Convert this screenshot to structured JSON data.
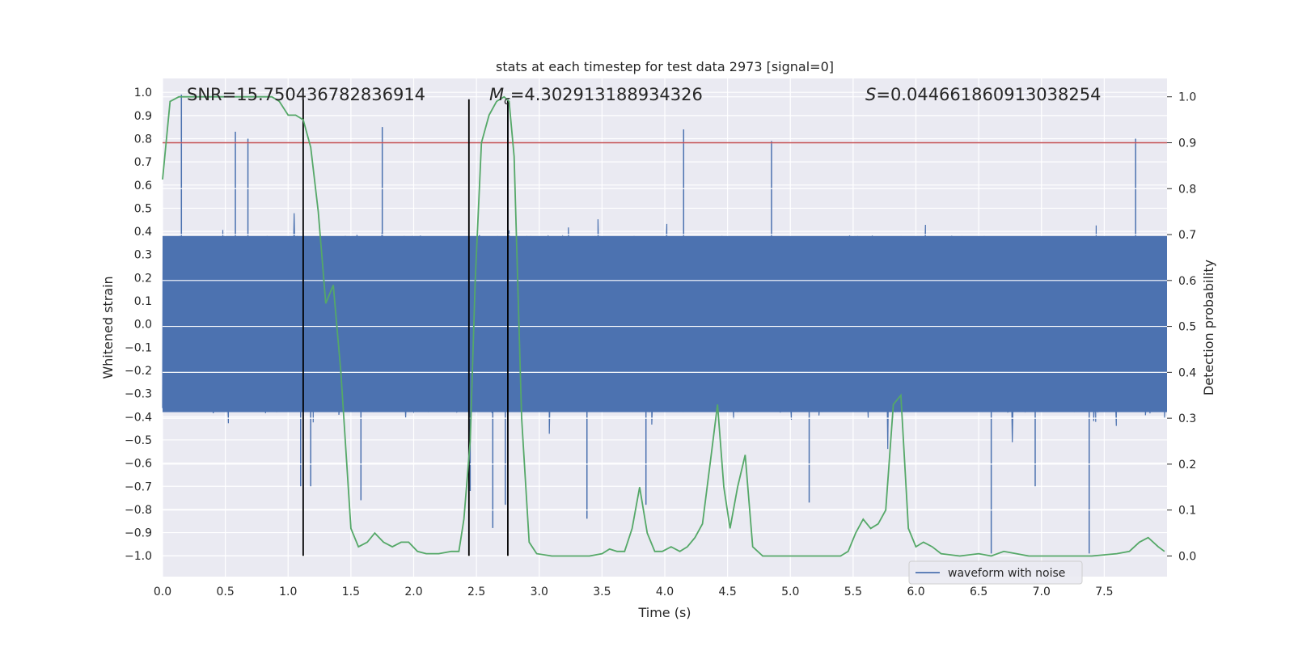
{
  "chart_data": {
    "type": "line",
    "title": "stats at each timestep for test data 2973 [signal=0]",
    "xlabel": "Time (s)",
    "ylabel_left": "Whitened strain",
    "ylabel_right": "Detection probability",
    "xlim": [
      0.0,
      8.0
    ],
    "ylim_left": [
      -1.09,
      1.06
    ],
    "ylim_right": [
      -0.045,
      1.04
    ],
    "x_ticks": [
      0.0,
      0.5,
      1.0,
      1.5,
      2.0,
      2.5,
      3.0,
      3.5,
      4.0,
      4.5,
      5.0,
      5.5,
      6.0,
      6.5,
      7.0,
      7.5
    ],
    "x_tick_labels": [
      "0.0",
      "0.5",
      "1.0",
      "1.5",
      "2.0",
      "2.5",
      "3.0",
      "3.5",
      "4.0",
      "4.5",
      "5.0",
      "5.5",
      "6.0",
      "6.5",
      "7.0",
      "7.5"
    ],
    "y_left_ticks": [
      1.0,
      0.9,
      0.8,
      0.7,
      0.6,
      0.5,
      0.4,
      0.3,
      0.2,
      0.1,
      0.0,
      -0.1,
      -0.2,
      -0.3,
      -0.4,
      -0.5,
      -0.6,
      -0.7,
      -0.8,
      -0.9,
      -1.0
    ],
    "y_left_tick_labels": [
      "1.0",
      "0.9",
      "0.8",
      "0.7",
      "0.6",
      "0.5",
      "0.4",
      "0.3",
      "0.2",
      "0.1",
      "0.0",
      "-0.1",
      "-0.2",
      "-0.3",
      "-0.4",
      "-0.5",
      "-0.6",
      "-0.7",
      "-0.8",
      "-0.9",
      "-1.0"
    ],
    "y_right_ticks": [
      1.0,
      0.9,
      0.8,
      0.7,
      0.6,
      0.5,
      0.4,
      0.3,
      0.2,
      0.1,
      0.0
    ],
    "y_right_tick_labels": [
      "1.0",
      "0.9",
      "0.8",
      "0.7",
      "0.6",
      "0.5",
      "0.4",
      "0.3",
      "0.2",
      "0.1",
      "0.0"
    ],
    "grid": true,
    "legend": {
      "placement": "lower-right",
      "entries": [
        "waveform with noise"
      ]
    },
    "annotations": {
      "snr": "SNR=15.750436782836914",
      "mc_symbol": "M",
      "mc_sub": "c",
      "mc_value": "=4.302913188934326",
      "s_symbol": "S",
      "s_value": "=0.044661860913038254"
    },
    "strain_series": {
      "name": "waveform with noise",
      "color": "#4c72b0",
      "sample_step_s": 0.004,
      "core_amplitude": 0.38,
      "typical_peak": 0.5,
      "notable_spikes": [
        [
          0.15,
          0.99
        ],
        [
          0.58,
          0.83
        ],
        [
          0.68,
          0.8
        ],
        [
          1.1,
          -0.7
        ],
        [
          1.18,
          -0.7
        ],
        [
          1.75,
          0.85
        ],
        [
          1.58,
          -0.76
        ],
        [
          2.45,
          -0.72
        ],
        [
          2.63,
          -0.88
        ],
        [
          2.73,
          -0.78
        ],
        [
          2.75,
          0.97
        ],
        [
          3.38,
          -0.84
        ],
        [
          4.15,
          0.84
        ],
        [
          4.85,
          0.79
        ],
        [
          5.15,
          -0.77
        ],
        [
          6.6,
          -0.99
        ],
        [
          7.38,
          -0.99
        ],
        [
          7.75,
          0.8
        ],
        [
          6.95,
          -0.7
        ],
        [
          3.85,
          -0.78
        ]
      ]
    },
    "threshold": {
      "value": 0.9,
      "axis": "right",
      "color": "#c44e52"
    },
    "markers": {
      "times": [
        1.12,
        2.44,
        2.75
      ],
      "color": "#000000",
      "y_range_left": [
        -1.0,
        0.97
      ]
    },
    "probability_series": {
      "color": "#55a868",
      "points": [
        [
          0.0,
          0.82
        ],
        [
          0.06,
          0.99
        ],
        [
          0.13,
          1.0
        ],
        [
          0.2,
          1.0
        ],
        [
          0.3,
          1.0
        ],
        [
          0.4,
          1.0
        ],
        [
          0.5,
          1.0
        ],
        [
          0.6,
          1.0
        ],
        [
          0.7,
          1.0
        ],
        [
          0.8,
          1.0
        ],
        [
          0.87,
          1.0
        ],
        [
          0.93,
          0.99
        ],
        [
          1.0,
          0.96
        ],
        [
          1.06,
          0.96
        ],
        [
          1.12,
          0.95
        ],
        [
          1.18,
          0.89
        ],
        [
          1.24,
          0.75
        ],
        [
          1.3,
          0.55
        ],
        [
          1.36,
          0.59
        ],
        [
          1.42,
          0.4
        ],
        [
          1.5,
          0.06
        ],
        [
          1.56,
          0.02
        ],
        [
          1.63,
          0.03
        ],
        [
          1.69,
          0.05
        ],
        [
          1.76,
          0.03
        ],
        [
          1.83,
          0.02
        ],
        [
          1.9,
          0.03
        ],
        [
          1.96,
          0.03
        ],
        [
          2.03,
          0.01
        ],
        [
          2.1,
          0.005
        ],
        [
          2.2,
          0.005
        ],
        [
          2.3,
          0.01
        ],
        [
          2.36,
          0.01
        ],
        [
          2.4,
          0.08
        ],
        [
          2.45,
          0.25
        ],
        [
          2.49,
          0.6
        ],
        [
          2.54,
          0.9
        ],
        [
          2.6,
          0.96
        ],
        [
          2.66,
          0.99
        ],
        [
          2.72,
          1.0
        ],
        [
          2.76,
          0.99
        ],
        [
          2.8,
          0.87
        ],
        [
          2.86,
          0.3
        ],
        [
          2.92,
          0.03
        ],
        [
          2.98,
          0.005
        ],
        [
          3.1,
          0.0
        ],
        [
          3.2,
          0.0
        ],
        [
          3.3,
          0.0
        ],
        [
          3.4,
          0.0
        ],
        [
          3.5,
          0.005
        ],
        [
          3.56,
          0.015
        ],
        [
          3.62,
          0.01
        ],
        [
          3.68,
          0.01
        ],
        [
          3.74,
          0.06
        ],
        [
          3.8,
          0.15
        ],
        [
          3.86,
          0.05
        ],
        [
          3.92,
          0.01
        ],
        [
          3.98,
          0.01
        ],
        [
          4.05,
          0.02
        ],
        [
          4.12,
          0.01
        ],
        [
          4.18,
          0.02
        ],
        [
          4.24,
          0.04
        ],
        [
          4.3,
          0.07
        ],
        [
          4.37,
          0.22
        ],
        [
          4.42,
          0.33
        ],
        [
          4.47,
          0.15
        ],
        [
          4.52,
          0.06
        ],
        [
          4.58,
          0.15
        ],
        [
          4.64,
          0.22
        ],
        [
          4.7,
          0.02
        ],
        [
          4.78,
          0.0
        ],
        [
          4.9,
          0.0
        ],
        [
          5.0,
          0.0
        ],
        [
          5.2,
          0.0
        ],
        [
          5.4,
          0.0
        ],
        [
          5.46,
          0.01
        ],
        [
          5.52,
          0.05
        ],
        [
          5.58,
          0.08
        ],
        [
          5.64,
          0.06
        ],
        [
          5.7,
          0.07
        ],
        [
          5.76,
          0.1
        ],
        [
          5.82,
          0.33
        ],
        [
          5.88,
          0.35
        ],
        [
          5.94,
          0.06
        ],
        [
          6.0,
          0.02
        ],
        [
          6.06,
          0.03
        ],
        [
          6.13,
          0.02
        ],
        [
          6.2,
          0.005
        ],
        [
          6.35,
          0.0
        ],
        [
          6.5,
          0.005
        ],
        [
          6.6,
          0.0
        ],
        [
          6.7,
          0.01
        ],
        [
          6.8,
          0.005
        ],
        [
          6.9,
          0.0
        ],
        [
          7.0,
          0.0
        ],
        [
          7.2,
          0.0
        ],
        [
          7.4,
          0.0
        ],
        [
          7.6,
          0.005
        ],
        [
          7.7,
          0.01
        ],
        [
          7.78,
          0.03
        ],
        [
          7.85,
          0.04
        ],
        [
          7.93,
          0.02
        ],
        [
          7.98,
          0.01
        ]
      ]
    }
  }
}
